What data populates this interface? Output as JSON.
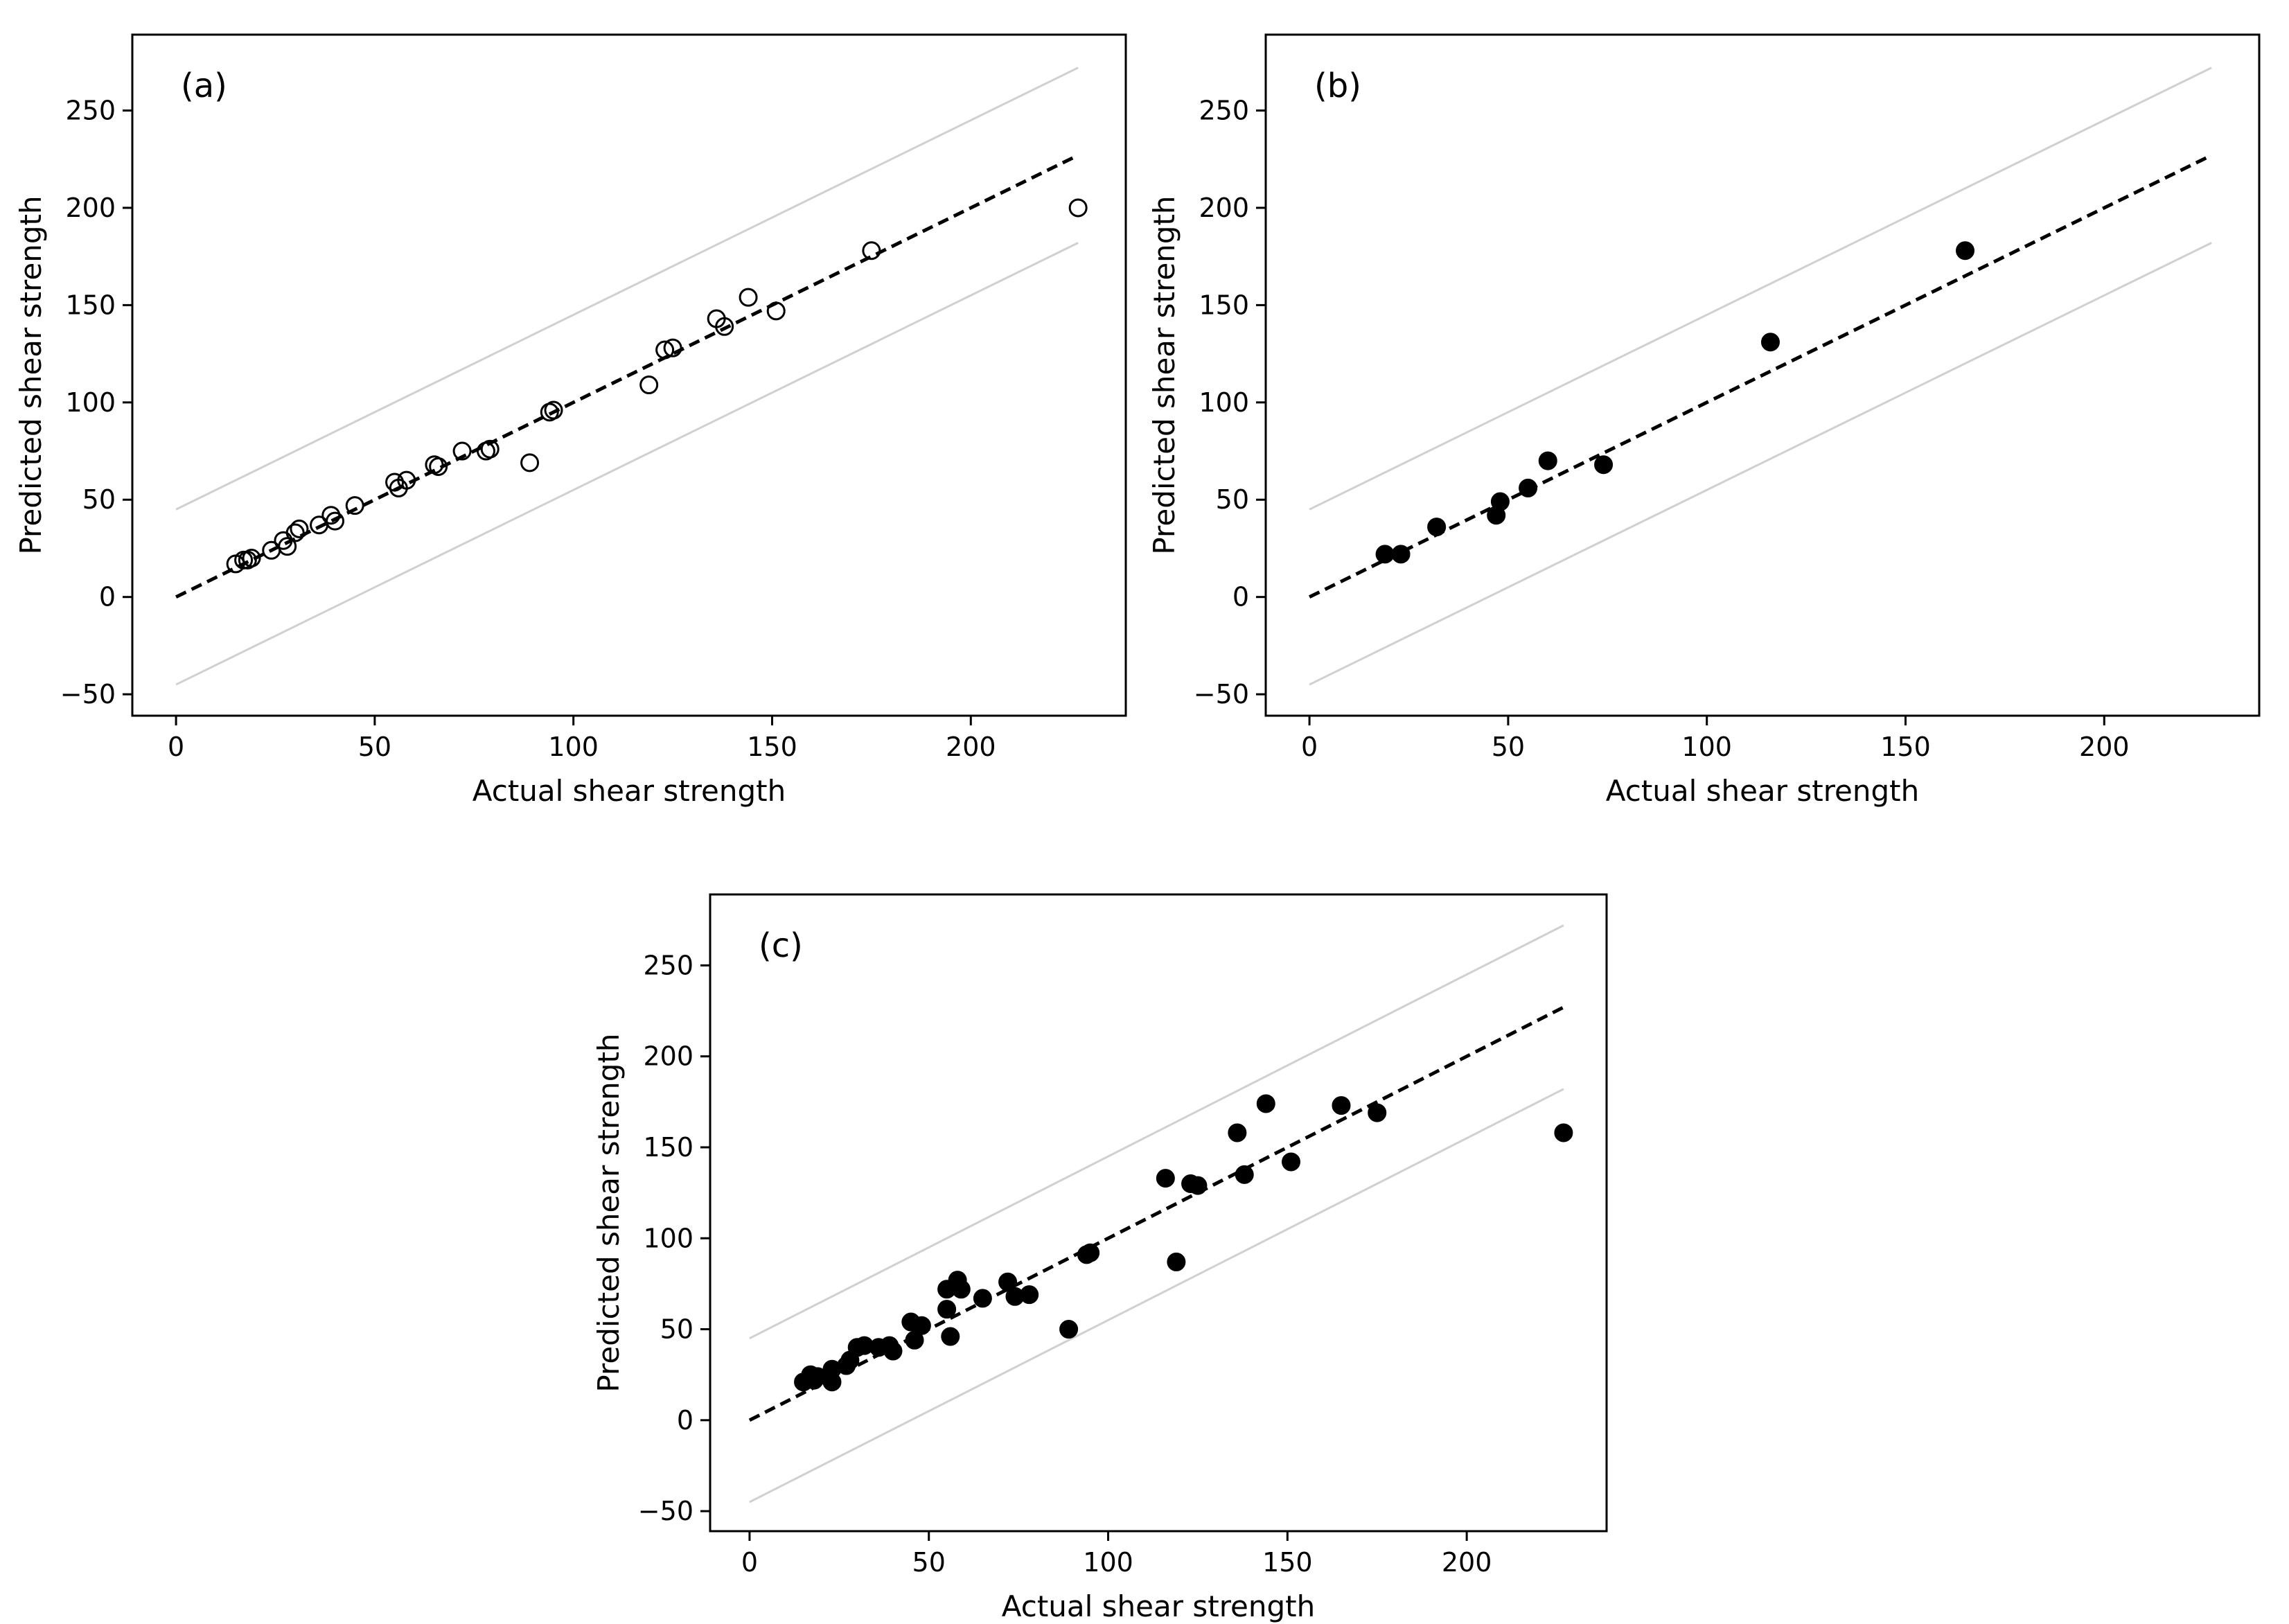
{
  "colors": {
    "background": "#ffffff",
    "ink": "#000000",
    "band": "#d0d0d0"
  },
  "chart_data": [
    {
      "type": "scatter",
      "panel_label": "(a)",
      "marker": "open-circle",
      "xlabel": "Actual shear strength",
      "ylabel": "Predicted shear strength",
      "xlim": [
        -11,
        239
      ],
      "ylim": [
        -61,
        289
      ],
      "xticks": [
        0,
        50,
        100,
        150,
        200
      ],
      "yticks": [
        -50,
        0,
        50,
        100,
        150,
        200,
        250
      ],
      "grid": false,
      "lines": [
        {
          "name": "y = x",
          "style": "dashed",
          "x": [
            0,
            227
          ],
          "y": [
            0,
            227
          ]
        },
        {
          "name": "upper bound",
          "style": "solid-light",
          "x": [
            0,
            227
          ],
          "y": [
            45,
            272
          ]
        },
        {
          "name": "lower bound",
          "style": "solid-light",
          "x": [
            0,
            227
          ],
          "y": [
            -45,
            182
          ]
        }
      ],
      "points": [
        {
          "x": 15,
          "y": 17
        },
        {
          "x": 17,
          "y": 19
        },
        {
          "x": 18,
          "y": 19
        },
        {
          "x": 19,
          "y": 20
        },
        {
          "x": 24,
          "y": 24
        },
        {
          "x": 27,
          "y": 29
        },
        {
          "x": 28,
          "y": 26
        },
        {
          "x": 30,
          "y": 33
        },
        {
          "x": 31,
          "y": 35
        },
        {
          "x": 36,
          "y": 37
        },
        {
          "x": 39,
          "y": 42
        },
        {
          "x": 40,
          "y": 39
        },
        {
          "x": 45,
          "y": 47
        },
        {
          "x": 55,
          "y": 59
        },
        {
          "x": 56,
          "y": 56
        },
        {
          "x": 58,
          "y": 60
        },
        {
          "x": 65,
          "y": 68
        },
        {
          "x": 66,
          "y": 67
        },
        {
          "x": 72,
          "y": 75
        },
        {
          "x": 78,
          "y": 75
        },
        {
          "x": 79,
          "y": 76
        },
        {
          "x": 89,
          "y": 69
        },
        {
          "x": 94,
          "y": 95
        },
        {
          "x": 95,
          "y": 96
        },
        {
          "x": 119,
          "y": 109
        },
        {
          "x": 123,
          "y": 127
        },
        {
          "x": 125,
          "y": 128
        },
        {
          "x": 136,
          "y": 143
        },
        {
          "x": 138,
          "y": 139
        },
        {
          "x": 144,
          "y": 154
        },
        {
          "x": 151,
          "y": 147
        },
        {
          "x": 175,
          "y": 178
        },
        {
          "x": 227,
          "y": 200
        }
      ]
    },
    {
      "type": "scatter",
      "panel_label": "(b)",
      "marker": "filled-circle",
      "xlabel": "Actual shear strength",
      "ylabel": "Predicted shear strength",
      "xlim": [
        -11,
        239
      ],
      "ylim": [
        -61,
        289
      ],
      "xticks": [
        0,
        50,
        100,
        150,
        200
      ],
      "yticks": [
        -50,
        0,
        50,
        100,
        150,
        200,
        250
      ],
      "grid": false,
      "lines": [
        {
          "name": "y = x",
          "style": "dashed",
          "x": [
            0,
            227
          ],
          "y": [
            0,
            227
          ]
        },
        {
          "name": "upper bound",
          "style": "solid-light",
          "x": [
            0,
            227
          ],
          "y": [
            45,
            272
          ]
        },
        {
          "name": "lower bound",
          "style": "solid-light",
          "x": [
            0,
            227
          ],
          "y": [
            -45,
            182
          ]
        }
      ],
      "points": [
        {
          "x": 19,
          "y": 22
        },
        {
          "x": 23,
          "y": 22
        },
        {
          "x": 32,
          "y": 36
        },
        {
          "x": 47,
          "y": 42
        },
        {
          "x": 48,
          "y": 49
        },
        {
          "x": 55,
          "y": 56
        },
        {
          "x": 60,
          "y": 70
        },
        {
          "x": 74,
          "y": 68
        },
        {
          "x": 116,
          "y": 131
        },
        {
          "x": 165,
          "y": 178
        }
      ]
    },
    {
      "type": "scatter",
      "panel_label": "(c)",
      "marker": "filled-circle",
      "xlabel": "Actual shear strength",
      "ylabel": "Predicted shear strength",
      "xlim": [
        -11,
        239
      ],
      "ylim": [
        -61,
        289
      ],
      "xticks": [
        0,
        50,
        100,
        150,
        200
      ],
      "yticks": [
        -50,
        0,
        50,
        100,
        150,
        200,
        250
      ],
      "grid": false,
      "lines": [
        {
          "name": "y = x",
          "style": "dashed",
          "x": [
            0,
            227
          ],
          "y": [
            0,
            227
          ]
        },
        {
          "name": "upper bound",
          "style": "solid-light",
          "x": [
            0,
            227
          ],
          "y": [
            45,
            272
          ]
        },
        {
          "name": "lower bound",
          "style": "solid-light",
          "x": [
            0,
            227
          ],
          "y": [
            -45,
            182
          ]
        }
      ],
      "points": [
        {
          "x": 15,
          "y": 21
        },
        {
          "x": 17,
          "y": 25
        },
        {
          "x": 18,
          "y": 22
        },
        {
          "x": 19,
          "y": 24
        },
        {
          "x": 23,
          "y": 21
        },
        {
          "x": 23,
          "y": 28
        },
        {
          "x": 27,
          "y": 30
        },
        {
          "x": 28,
          "y": 33
        },
        {
          "x": 30,
          "y": 40
        },
        {
          "x": 32,
          "y": 41
        },
        {
          "x": 36,
          "y": 40
        },
        {
          "x": 39,
          "y": 41
        },
        {
          "x": 40,
          "y": 38
        },
        {
          "x": 45,
          "y": 54
        },
        {
          "x": 46,
          "y": 44
        },
        {
          "x": 48,
          "y": 52
        },
        {
          "x": 55,
          "y": 61
        },
        {
          "x": 55,
          "y": 72
        },
        {
          "x": 56,
          "y": 46
        },
        {
          "x": 58,
          "y": 77
        },
        {
          "x": 59,
          "y": 72
        },
        {
          "x": 65,
          "y": 67
        },
        {
          "x": 72,
          "y": 76
        },
        {
          "x": 74,
          "y": 68
        },
        {
          "x": 78,
          "y": 69
        },
        {
          "x": 89,
          "y": 50
        },
        {
          "x": 94,
          "y": 91
        },
        {
          "x": 95,
          "y": 92
        },
        {
          "x": 116,
          "y": 133
        },
        {
          "x": 119,
          "y": 87
        },
        {
          "x": 123,
          "y": 130
        },
        {
          "x": 125,
          "y": 129
        },
        {
          "x": 136,
          "y": 158
        },
        {
          "x": 138,
          "y": 135
        },
        {
          "x": 144,
          "y": 174
        },
        {
          "x": 151,
          "y": 142
        },
        {
          "x": 165,
          "y": 173
        },
        {
          "x": 175,
          "y": 169
        },
        {
          "x": 227,
          "y": 158
        }
      ]
    }
  ]
}
